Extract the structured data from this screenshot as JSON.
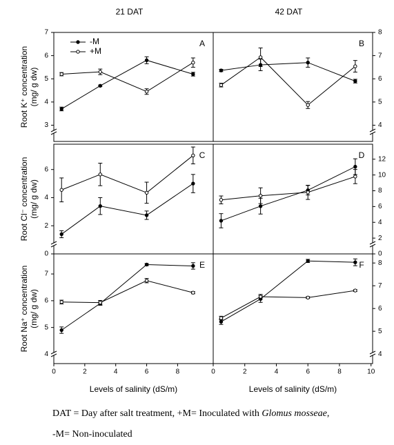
{
  "chart_data": [
    {
      "type": "line",
      "title": "21 DAT",
      "panel": "A",
      "y_label": [
        "Root K⁺ concentration",
        "(mg/ g dw)"
      ],
      "x": [
        0.5,
        3,
        6,
        9
      ],
      "xlim": [
        0,
        10.3
      ],
      "ylim": [
        2.3,
        7
      ],
      "yticks": [
        3,
        4,
        5,
        6,
        7
      ],
      "legend": "upper left",
      "series": [
        {
          "name": "-M",
          "color": "#000000",
          "marker_fill": "#000000",
          "values": [
            3.7,
            4.7,
            5.8,
            5.2
          ],
          "errors": [
            0.08,
            0.03,
            0.15,
            0.08
          ]
        },
        {
          "name": "+M",
          "color": "#000000",
          "marker_fill": "#ffffff",
          "values": [
            5.2,
            5.3,
            4.45,
            5.7
          ],
          "errors": [
            0.07,
            0.12,
            0.12,
            0.2
          ]
        }
      ]
    },
    {
      "type": "line",
      "title": "42 DAT",
      "panel": "B",
      "x": [
        0.5,
        3,
        6,
        9
      ],
      "xlim": [
        0,
        10.1
      ],
      "ylim": [
        3.3,
        8
      ],
      "yticks": [
        4,
        5,
        6,
        7,
        8
      ],
      "series": [
        {
          "name": "-M",
          "color": "#000000",
          "marker_fill": "#000000",
          "values": [
            6.36,
            6.6,
            6.7,
            5.9
          ],
          "errors": [
            0.05,
            0.25,
            0.2,
            0.08
          ]
        },
        {
          "name": "+M",
          "color": "#000000",
          "marker_fill": "#ffffff",
          "values": [
            5.73,
            6.93,
            4.87,
            6.54
          ],
          "errors": [
            0.08,
            0.4,
            0.15,
            0.25
          ]
        }
      ]
    },
    {
      "type": "line",
      "panel": "C",
      "y_label": [
        "Root Cl⁻ concentration",
        "(mg/ g dw)"
      ],
      "x": [
        0.5,
        3,
        6,
        9
      ],
      "xlim": [
        0,
        10.3
      ],
      "ylim": [
        0,
        7.8
      ],
      "yticks": [
        0,
        2,
        4,
        6
      ],
      "series": [
        {
          "name": "-M",
          "color": "#000000",
          "marker_fill": "#000000",
          "values": [
            1.4,
            3.4,
            2.75,
            5.0
          ],
          "errors": [
            0.25,
            0.6,
            0.3,
            0.65
          ]
        },
        {
          "name": "+M",
          "color": "#000000",
          "marker_fill": "#ffffff",
          "values": [
            4.55,
            5.65,
            4.35,
            7.0
          ],
          "errors": [
            0.85,
            0.8,
            0.75,
            0.6
          ]
        }
      ]
    },
    {
      "type": "line",
      "panel": "D",
      "x": [
        0.5,
        3,
        6,
        9
      ],
      "xlim": [
        0,
        10.1
      ],
      "ylim": [
        0,
        13.9
      ],
      "yticks": [
        0,
        2,
        4,
        6,
        8,
        10,
        12
      ],
      "series": [
        {
          "name": "-M",
          "color": "#000000",
          "marker_fill": "#000000",
          "values": [
            4.2,
            6.05,
            8.07,
            11.05
          ],
          "errors": [
            0.9,
            1.0,
            0.6,
            1.0
          ]
        },
        {
          "name": "+M",
          "color": "#000000",
          "marker_fill": "#ffffff",
          "values": [
            6.84,
            7.37,
            7.8,
            9.8
          ],
          "errors": [
            0.5,
            1.0,
            0.9,
            0.9
          ]
        }
      ]
    },
    {
      "type": "line",
      "panel": "E",
      "y_label": [
        "Root Na⁺ concentration",
        "(mg/ g dw)"
      ],
      "x_label": "Levels of salinity (dS/m)",
      "x": [
        0.5,
        3,
        6,
        9
      ],
      "xlim": [
        0,
        10.3
      ],
      "xticks": [
        0,
        2,
        4,
        6,
        8
      ],
      "ylim": [
        3.65,
        7.75
      ],
      "yticks": [
        4,
        5,
        6,
        7
      ],
      "series": [
        {
          "name": "-M",
          "color": "#000000",
          "marker_fill": "#000000",
          "values": [
            4.9,
            5.9,
            7.35,
            7.3
          ],
          "errors": [
            0.12,
            0.07,
            0.04,
            0.12
          ]
        },
        {
          "name": "+M",
          "color": "#000000",
          "marker_fill": "#ffffff",
          "values": [
            5.95,
            5.93,
            6.75,
            6.3
          ],
          "errors": [
            0.07,
            0.08,
            0.08,
            0.04
          ]
        }
      ]
    },
    {
      "type": "line",
      "panel": "F",
      "x_label": "Levels of salinity (dS/m)",
      "x": [
        0.5,
        3,
        6,
        9
      ],
      "xlim": [
        0,
        10.1
      ],
      "xticks": [
        0,
        2,
        4,
        6,
        8,
        10
      ],
      "ylim": [
        3.58,
        8.4
      ],
      "yticks": [
        4,
        5,
        6,
        7,
        8
      ],
      "series": [
        {
          "name": "-M",
          "color": "#000000",
          "marker_fill": "#000000",
          "values": [
            5.42,
            6.42,
            8.09,
            8.03
          ],
          "errors": [
            0.12,
            0.15,
            0.07,
            0.15
          ]
        },
        {
          "name": "+M",
          "color": "#000000",
          "marker_fill": "#ffffff",
          "values": [
            5.58,
            6.52,
            6.48,
            6.79
          ],
          "errors": [
            0.08,
            0.1,
            0.04,
            0.04
          ]
        }
      ]
    }
  ],
  "caption": {
    "line1": [
      "DAT = Day after salt treatment, +M= Inoculated with ",
      "Glomus mosseae",
      ","
    ],
    "line2": "-M= Non-inoculated"
  }
}
